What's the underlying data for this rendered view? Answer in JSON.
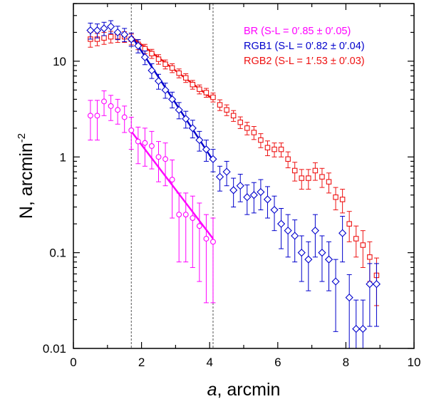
{
  "chart_data": {
    "type": "scatter",
    "xlabel_italic": "a",
    "xlabel_rest": ", arcmin",
    "ylabel_main": "N, arcmin",
    "ylabel_sup": "-2",
    "xlim": [
      0,
      10
    ],
    "ylim": [
      0.01,
      40
    ],
    "yscale": "log",
    "x_ticks": [
      "0",
      "2",
      "4",
      "6",
      "8",
      "10"
    ],
    "x_tick_values": [
      0,
      2,
      4,
      6,
      8,
      10
    ],
    "y_ticks": [
      "0.01",
      "0.1",
      "1",
      "10"
    ],
    "y_tick_values": [
      0.01,
      0.1,
      1,
      10
    ],
    "grid": false,
    "legend_position": "top-right",
    "vlines": [
      1.7,
      4.1
    ],
    "colors": {
      "BR": "#ff00ff",
      "RGB1": "#0000cc",
      "RGB2": "#ee1111"
    },
    "series": [
      {
        "name": "RGB2 (S-L = 1′.53 ± 0′.03)",
        "key": "RGB2",
        "marker": "square",
        "x": [
          0.5,
          0.7,
          0.9,
          1.1,
          1.3,
          1.5,
          1.7,
          1.9,
          2.1,
          2.3,
          2.5,
          2.7,
          2.9,
          3.1,
          3.3,
          3.5,
          3.7,
          3.9,
          4.1,
          4.3,
          4.5,
          4.7,
          4.9,
          5.1,
          5.3,
          5.5,
          5.7,
          5.9,
          6.1,
          6.3,
          6.5,
          6.7,
          6.9,
          7.1,
          7.3,
          7.5,
          7.7,
          7.9,
          8.1,
          8.3,
          8.5,
          8.7,
          8.9
        ],
        "y": [
          17,
          17,
          17.5,
          18,
          18,
          18,
          17,
          15,
          13.5,
          12,
          10.5,
          9.3,
          8.5,
          7.5,
          6.7,
          5.7,
          5.1,
          4.7,
          4.2,
          3.5,
          3.1,
          2.7,
          2.3,
          2.0,
          1.8,
          1.5,
          1.25,
          1.2,
          1.2,
          0.95,
          0.72,
          0.6,
          0.6,
          0.72,
          0.62,
          0.55,
          0.38,
          0.36,
          0.2,
          0.14,
          0.12,
          0.09,
          0.058
        ],
        "err": [
          3,
          2.5,
          2.5,
          2.5,
          2.3,
          2.3,
          2.2,
          1.8,
          1.5,
          1.3,
          1.2,
          1.0,
          0.9,
          0.8,
          0.7,
          0.6,
          0.55,
          0.5,
          0.45,
          0.45,
          0.4,
          0.35,
          0.32,
          0.3,
          0.28,
          0.25,
          0.22,
          0.2,
          0.2,
          0.18,
          0.16,
          0.14,
          0.14,
          0.15,
          0.14,
          0.13,
          0.1,
          0.1,
          0.07,
          0.05,
          0.05,
          0.04,
          0.03
        ],
        "fit": {
          "x": [
            1.7,
            4.1
          ],
          "y": [
            18.0,
            4.0
          ]
        }
      },
      {
        "name": "RGB1 (S-L = 0′.82 ± 0′.04)",
        "key": "RGB1",
        "marker": "diamond",
        "x": [
          0.5,
          0.7,
          0.9,
          1.1,
          1.3,
          1.5,
          1.7,
          1.9,
          2.1,
          2.3,
          2.5,
          2.7,
          2.9,
          3.1,
          3.3,
          3.5,
          3.7,
          3.9,
          4.1,
          4.3,
          4.5,
          4.7,
          4.9,
          5.1,
          5.3,
          5.5,
          5.7,
          5.9,
          6.1,
          6.3,
          6.5,
          6.7,
          6.9,
          7.1,
          7.3,
          7.5,
          7.7,
          7.9,
          8.1,
          8.3,
          8.5,
          8.7,
          8.9
        ],
        "y": [
          21,
          21,
          22,
          23,
          20,
          19,
          17,
          14.5,
          11,
          8,
          6.2,
          5.0,
          4.0,
          3.1,
          2.5,
          2.0,
          1.5,
          1.2,
          0.95,
          0.62,
          0.7,
          0.45,
          0.5,
          0.38,
          0.4,
          0.43,
          0.36,
          0.28,
          0.2,
          0.17,
          0.15,
          0.1,
          0.085,
          0.17,
          0.1,
          0.085,
          0.05,
          0.16,
          0.034,
          0.016,
          0.016,
          0.047,
          0.047
        ],
        "err": [
          4,
          3.5,
          3.5,
          3.5,
          3.2,
          3,
          2.7,
          2.3,
          1.8,
          1.4,
          1.1,
          0.9,
          0.75,
          0.6,
          0.5,
          0.42,
          0.35,
          0.3,
          0.25,
          0.18,
          0.2,
          0.15,
          0.16,
          0.13,
          0.14,
          0.15,
          0.13,
          0.11,
          0.09,
          0.08,
          0.07,
          0.05,
          0.045,
          0.08,
          0.05,
          0.045,
          0.035,
          0.08,
          0.025,
          0.016,
          0.016,
          0.03,
          0.03
        ],
        "fit": {
          "x": [
            1.7,
            4.1
          ],
          "y": [
            18.5,
            0.92
          ]
        }
      },
      {
        "name": "BR (S-L = 0′.85 ± 0′.05)",
        "key": "BR",
        "marker": "circle",
        "x": [
          0.5,
          0.7,
          0.9,
          1.1,
          1.3,
          1.5,
          1.7,
          1.9,
          2.1,
          2.3,
          2.5,
          2.7,
          2.9,
          3.1,
          3.3,
          3.5,
          3.7,
          3.9,
          4.1
        ],
        "y": [
          2.7,
          2.7,
          3.8,
          3.4,
          3.1,
          2.6,
          1.9,
          1.45,
          1.4,
          1.3,
          1.0,
          0.95,
          0.58,
          0.25,
          0.25,
          0.23,
          0.19,
          0.14,
          0.13
        ],
        "err": [
          1.2,
          1.2,
          1.1,
          1.0,
          0.9,
          0.8,
          0.7,
          0.6,
          0.6,
          0.55,
          0.45,
          0.45,
          0.35,
          0.17,
          0.17,
          0.16,
          0.14,
          0.11,
          0.1
        ],
        "fit": {
          "x": [
            1.7,
            4.1
          ],
          "y": [
            1.85,
            0.14
          ]
        }
      }
    ]
  }
}
